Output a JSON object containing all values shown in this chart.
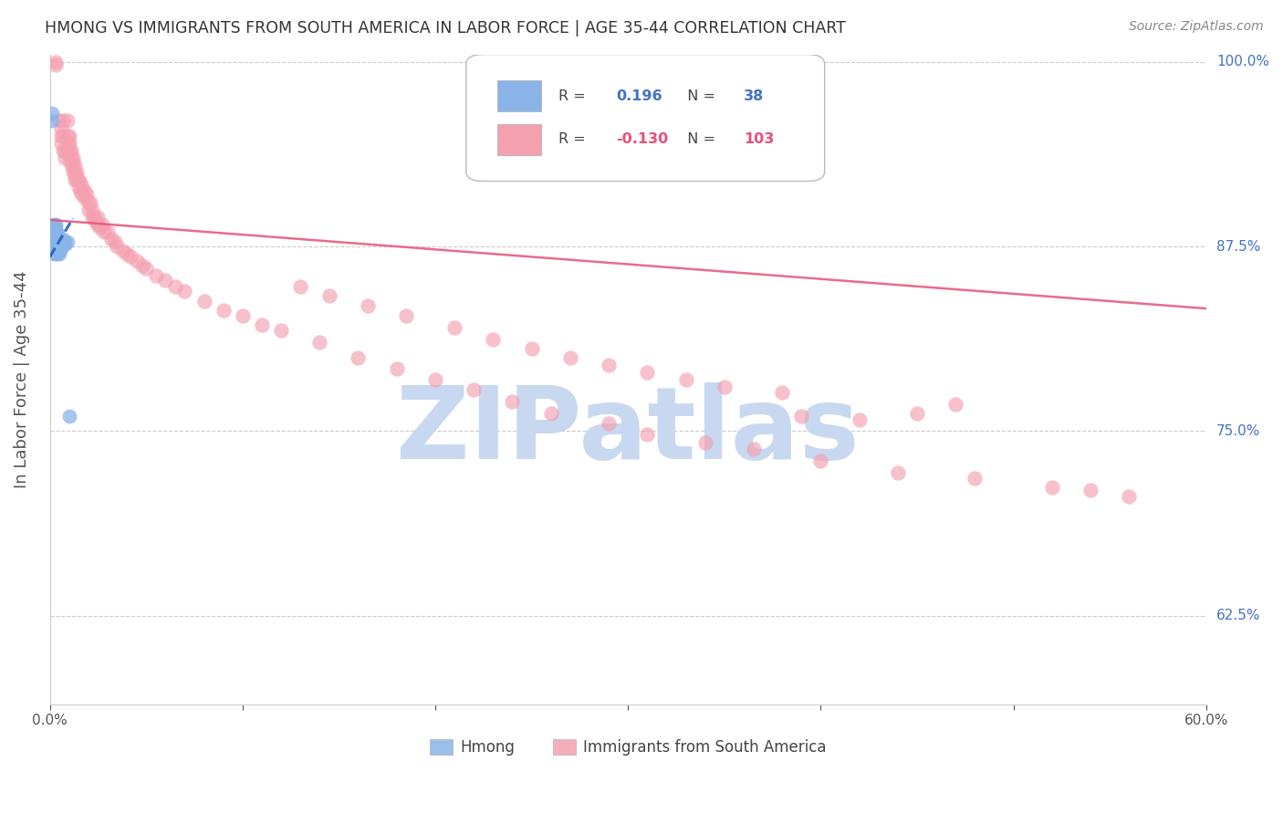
{
  "title": "HMONG VS IMMIGRANTS FROM SOUTH AMERICA IN LABOR FORCE | AGE 35-44 CORRELATION CHART",
  "source": "Source: ZipAtlas.com",
  "ylabel": "In Labor Force | Age 35-44",
  "xlim": [
    0.0,
    0.6
  ],
  "ylim": [
    0.565,
    1.005
  ],
  "hmong_R": 0.196,
  "hmong_N": 38,
  "south_america_R": -0.13,
  "south_america_N": 103,
  "hmong_color": "#8ab4e8",
  "south_america_color": "#f4a0b0",
  "trendline_hmong_color": "#2060c0",
  "trendline_sa_color": "#e8507a",
  "background_color": "#ffffff",
  "watermark_text": "ZIPatlas",
  "watermark_color": "#c8d8f0",
  "hmong_x": [
    0.001,
    0.001,
    0.002,
    0.002,
    0.002,
    0.002,
    0.002,
    0.003,
    0.003,
    0.003,
    0.003,
    0.003,
    0.003,
    0.003,
    0.003,
    0.004,
    0.004,
    0.004,
    0.004,
    0.004,
    0.004,
    0.004,
    0.004,
    0.005,
    0.005,
    0.005,
    0.005,
    0.005,
    0.006,
    0.006,
    0.006,
    0.007,
    0.007,
    0.007,
    0.008,
    0.008,
    0.009,
    0.01
  ],
  "hmong_y": [
    0.96,
    0.965,
    0.87,
    0.875,
    0.88,
    0.885,
    0.89,
    0.87,
    0.875,
    0.88,
    0.882,
    0.884,
    0.886,
    0.888,
    0.89,
    0.87,
    0.872,
    0.874,
    0.876,
    0.878,
    0.88,
    0.882,
    0.884,
    0.87,
    0.872,
    0.874,
    0.876,
    0.878,
    0.874,
    0.876,
    0.878,
    0.876,
    0.878,
    0.88,
    0.876,
    0.878,
    0.878,
    0.76
  ],
  "hmong_trendline_x": [
    0.0,
    0.012
  ],
  "hmong_trendline_y": [
    0.868,
    0.894
  ],
  "sa_trendline_x": [
    0.0,
    0.6
  ],
  "sa_trendline_y": [
    0.893,
    0.833
  ],
  "sa_x": [
    0.003,
    0.003,
    0.005,
    0.006,
    0.006,
    0.006,
    0.007,
    0.007,
    0.007,
    0.008,
    0.008,
    0.009,
    0.009,
    0.009,
    0.01,
    0.01,
    0.01,
    0.01,
    0.011,
    0.011,
    0.011,
    0.012,
    0.012,
    0.012,
    0.013,
    0.013,
    0.013,
    0.014,
    0.014,
    0.015,
    0.015,
    0.016,
    0.016,
    0.017,
    0.017,
    0.018,
    0.018,
    0.019,
    0.02,
    0.02,
    0.021,
    0.022,
    0.022,
    0.023,
    0.024,
    0.025,
    0.025,
    0.026,
    0.027,
    0.028,
    0.03,
    0.032,
    0.034,
    0.035,
    0.038,
    0.04,
    0.042,
    0.045,
    0.048,
    0.05,
    0.055,
    0.06,
    0.065,
    0.07,
    0.08,
    0.09,
    0.1,
    0.11,
    0.12,
    0.14,
    0.16,
    0.18,
    0.2,
    0.22,
    0.24,
    0.26,
    0.29,
    0.31,
    0.34,
    0.365,
    0.4,
    0.44,
    0.48,
    0.52,
    0.54,
    0.56,
    0.39,
    0.42,
    0.45,
    0.47,
    0.38,
    0.35,
    0.33,
    0.31,
    0.29,
    0.27,
    0.25,
    0.23,
    0.21,
    0.185,
    0.165,
    0.145,
    0.13
  ],
  "sa_y": [
    1.0,
    0.998,
    0.96,
    0.955,
    0.95,
    0.945,
    0.96,
    0.95,
    0.94,
    0.94,
    0.935,
    0.96,
    0.95,
    0.945,
    0.95,
    0.945,
    0.94,
    0.935,
    0.94,
    0.935,
    0.93,
    0.935,
    0.93,
    0.925,
    0.93,
    0.925,
    0.92,
    0.925,
    0.92,
    0.92,
    0.915,
    0.918,
    0.912,
    0.915,
    0.91,
    0.912,
    0.908,
    0.91,
    0.905,
    0.9,
    0.905,
    0.9,
    0.895,
    0.895,
    0.892,
    0.89,
    0.895,
    0.888,
    0.89,
    0.885,
    0.885,
    0.88,
    0.878,
    0.875,
    0.872,
    0.87,
    0.868,
    0.865,
    0.862,
    0.86,
    0.855,
    0.852,
    0.848,
    0.845,
    0.838,
    0.832,
    0.828,
    0.822,
    0.818,
    0.81,
    0.8,
    0.792,
    0.785,
    0.778,
    0.77,
    0.762,
    0.755,
    0.748,
    0.742,
    0.738,
    0.73,
    0.722,
    0.718,
    0.712,
    0.71,
    0.706,
    0.76,
    0.758,
    0.762,
    0.768,
    0.776,
    0.78,
    0.785,
    0.79,
    0.795,
    0.8,
    0.806,
    0.812,
    0.82,
    0.828,
    0.835,
    0.842,
    0.848
  ]
}
